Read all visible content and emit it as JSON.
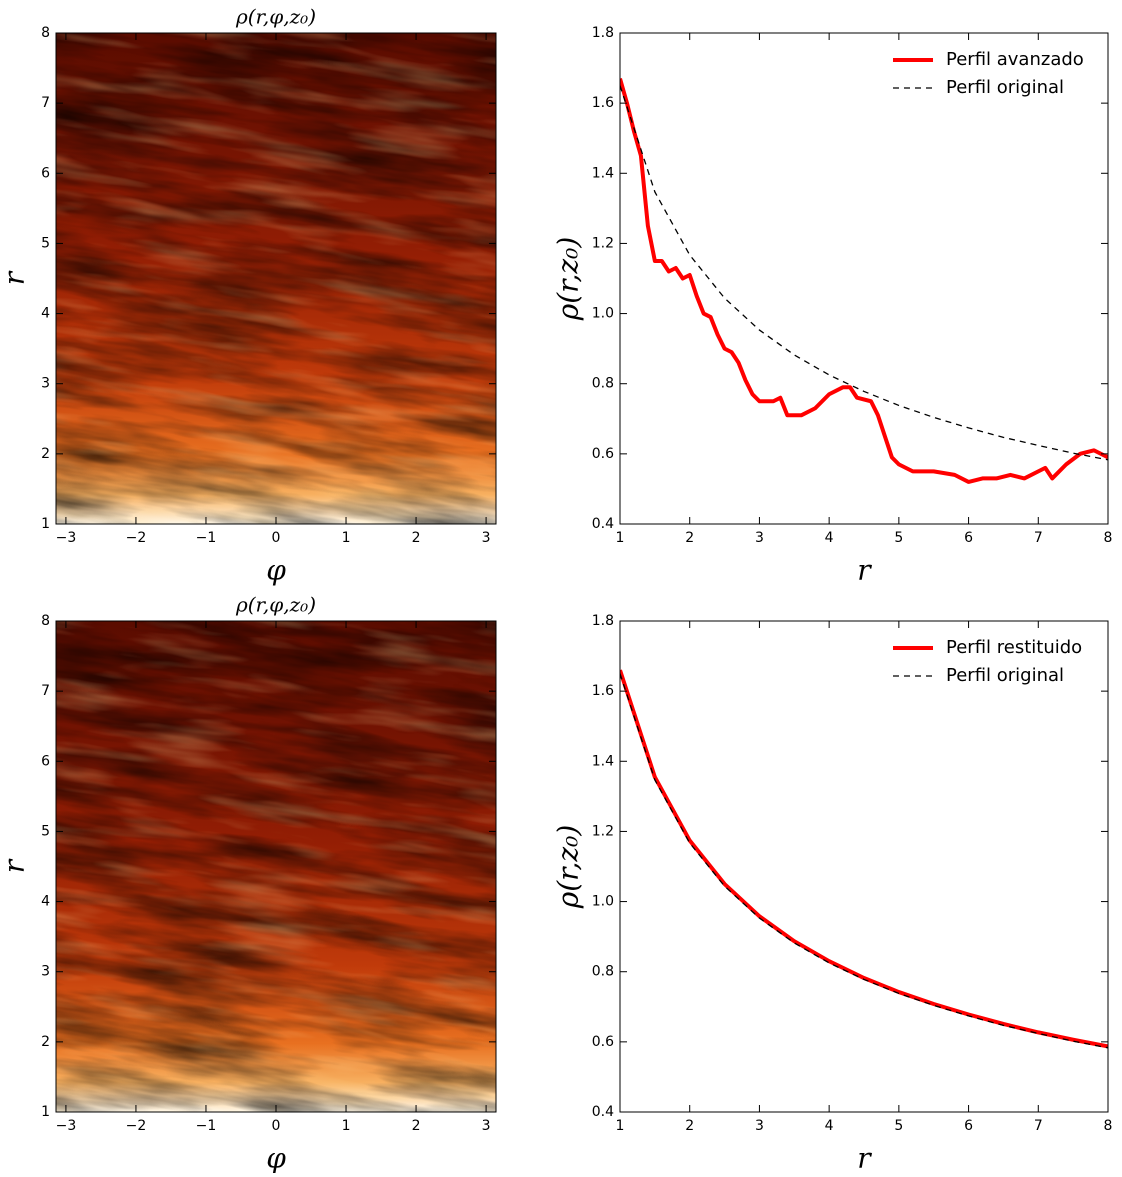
{
  "chart_data": [
    {
      "type": "heatmap",
      "title": "ρ(r,φ,z₀)",
      "xlabel": "φ",
      "ylabel": "r",
      "xlim": [
        -3.14159,
        3.14159
      ],
      "ylim": [
        1,
        8
      ],
      "xticks": [
        {
          "value": -3,
          "label": "−3"
        },
        {
          "value": -2,
          "label": "−2"
        },
        {
          "value": -1,
          "label": "−1"
        },
        0,
        1,
        2,
        3
      ],
      "yticks": [
        1,
        2,
        3,
        4,
        5,
        6,
        7,
        8
      ]
    },
    {
      "type": "line",
      "xlabel": "r",
      "ylabel": "ρ(r,z₀)",
      "xlim": [
        1,
        8
      ],
      "ylim": [
        0.4,
        1.8
      ],
      "xticks": [
        1,
        2,
        3,
        4,
        5,
        6,
        7,
        8
      ],
      "yticks": [
        0.4,
        0.6,
        0.8,
        {
          "value": 1,
          "label": "1.0"
        },
        1.2,
        1.4,
        1.6,
        1.8
      ],
      "legend": "upper right",
      "series": [
        {
          "name": "Perfil avanzado",
          "color": "#ff0000",
          "style": "solid",
          "x": [
            1.0,
            1.1,
            1.2,
            1.3,
            1.4,
            1.5,
            1.6,
            1.7,
            1.8,
            1.9,
            2.0,
            2.1,
            2.2,
            2.3,
            2.4,
            2.5,
            2.6,
            2.7,
            2.8,
            2.9,
            3.0,
            3.2,
            3.3,
            3.4,
            3.6,
            3.8,
            4.0,
            4.2,
            4.3,
            4.4,
            4.6,
            4.7,
            4.8,
            4.9,
            5.0,
            5.2,
            5.5,
            5.8,
            6.0,
            6.2,
            6.4,
            6.6,
            6.8,
            7.0,
            7.1,
            7.2,
            7.4,
            7.6,
            7.8,
            8.0
          ],
          "values": [
            1.67,
            1.6,
            1.52,
            1.45,
            1.25,
            1.15,
            1.15,
            1.12,
            1.13,
            1.1,
            1.11,
            1.05,
            1.0,
            0.99,
            0.94,
            0.9,
            0.89,
            0.86,
            0.81,
            0.77,
            0.75,
            0.75,
            0.76,
            0.71,
            0.71,
            0.73,
            0.77,
            0.79,
            0.79,
            0.76,
            0.75,
            0.71,
            0.65,
            0.59,
            0.57,
            0.55,
            0.55,
            0.54,
            0.52,
            0.53,
            0.53,
            0.54,
            0.53,
            0.55,
            0.56,
            0.53,
            0.57,
            0.6,
            0.61,
            0.59
          ]
        },
        {
          "name": "Perfil original",
          "color": "#000000",
          "style": "dashed",
          "x": [
            1,
            1.5,
            2,
            2.5,
            3,
            3.5,
            4,
            4.5,
            5,
            5.5,
            6,
            6.5,
            7,
            7.5,
            8
          ],
          "values": [
            1.65,
            1.347,
            1.167,
            1.044,
            0.953,
            0.882,
            0.825,
            0.778,
            0.738,
            0.704,
            0.674,
            0.647,
            0.624,
            0.602,
            0.583
          ]
        }
      ]
    },
    {
      "type": "heatmap",
      "title": "ρ(r,φ,z₀)",
      "xlabel": "φ",
      "ylabel": "r",
      "xlim": [
        -3.14159,
        3.14159
      ],
      "ylim": [
        1,
        8
      ],
      "xticks": [
        {
          "value": -3,
          "label": "−3"
        },
        {
          "value": -2,
          "label": "−2"
        },
        {
          "value": -1,
          "label": "−1"
        },
        0,
        1,
        2,
        3
      ],
      "yticks": [
        1,
        2,
        3,
        4,
        5,
        6,
        7,
        8
      ]
    },
    {
      "type": "line",
      "xlabel": "r",
      "ylabel": "ρ(r,z₀)",
      "xlim": [
        1,
        8
      ],
      "ylim": [
        0.4,
        1.8
      ],
      "xticks": [
        1,
        2,
        3,
        4,
        5,
        6,
        7,
        8
      ],
      "yticks": [
        0.4,
        0.6,
        0.8,
        {
          "value": 1,
          "label": "1.0"
        },
        1.2,
        1.4,
        1.6,
        1.8
      ],
      "legend": "upper right",
      "series": [
        {
          "name": "Perfil restituido",
          "color": "#ff0000",
          "style": "solid",
          "x": [
            1,
            1.5,
            2,
            2.5,
            3,
            3.5,
            4,
            4.5,
            5,
            5.5,
            6,
            6.5,
            7,
            7.5,
            8
          ],
          "values": [
            1.66,
            1.355,
            1.174,
            1.05,
            0.958,
            0.887,
            0.83,
            0.782,
            0.742,
            0.708,
            0.678,
            0.651,
            0.627,
            0.606,
            0.587
          ]
        },
        {
          "name": "Perfil original",
          "color": "#000000",
          "style": "dashed",
          "x": [
            1,
            1.5,
            2,
            2.5,
            3,
            3.5,
            4,
            4.5,
            5,
            5.5,
            6,
            6.5,
            7,
            7.5,
            8
          ],
          "values": [
            1.65,
            1.347,
            1.167,
            1.044,
            0.953,
            0.882,
            0.825,
            0.778,
            0.738,
            0.704,
            0.674,
            0.647,
            0.624,
            0.602,
            0.583
          ]
        }
      ]
    }
  ]
}
